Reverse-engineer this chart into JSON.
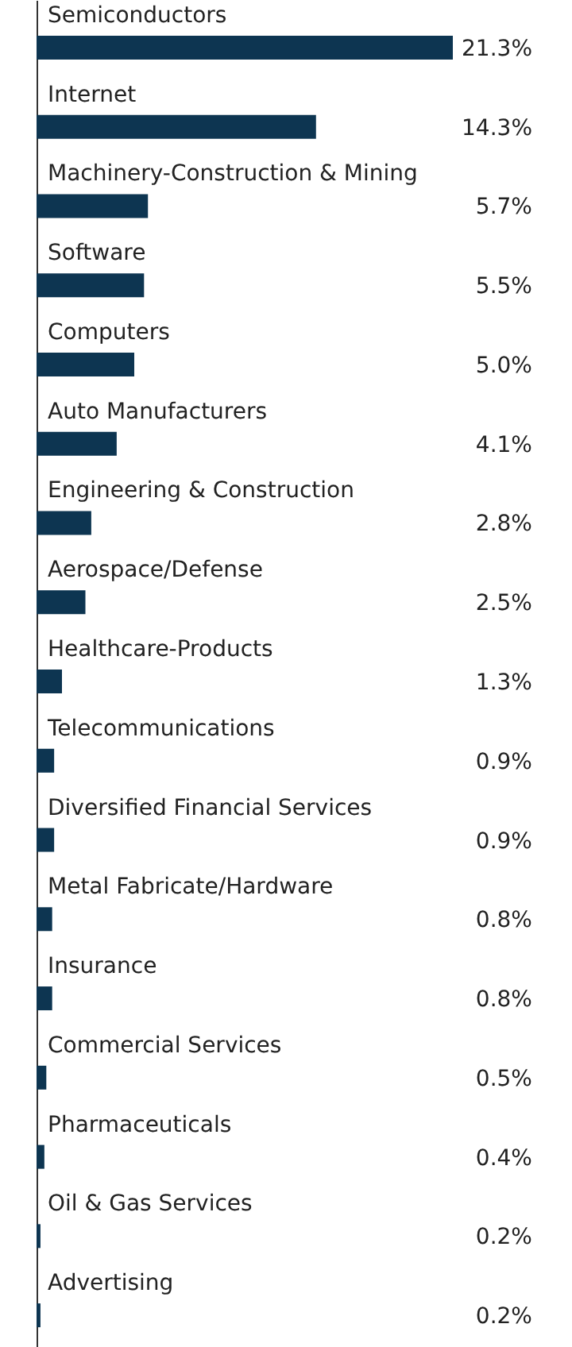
{
  "chart_data": {
    "type": "bar",
    "orientation": "horizontal",
    "color": "#0d3551",
    "categories": [
      "Semiconductors",
      "Internet",
      "Machinery-Construction & Mining",
      "Software",
      "Computers",
      "Auto Manufacturers",
      "Engineering & Construction",
      "Aerospace/Defense",
      "Healthcare-Products",
      "Telecommunications",
      "Diversified Financial Services",
      "Metal Fabricate/Hardware",
      "Insurance",
      "Commercial Services",
      "Pharmaceuticals",
      "Oil & Gas Services",
      "Advertising"
    ],
    "values": [
      21.3,
      14.3,
      5.7,
      5.5,
      5.0,
      4.1,
      2.8,
      2.5,
      1.3,
      0.9,
      0.9,
      0.8,
      0.8,
      0.5,
      0.4,
      0.2,
      0.2
    ],
    "value_labels": [
      "21.3%",
      "14.3%",
      "5.7%",
      "5.5%",
      "5.0%",
      "4.1%",
      "2.8%",
      "2.5%",
      "1.3%",
      "0.9%",
      "0.9%",
      "0.8%",
      "0.8%",
      "0.5%",
      "0.4%",
      "0.2%",
      "0.2%"
    ]
  }
}
